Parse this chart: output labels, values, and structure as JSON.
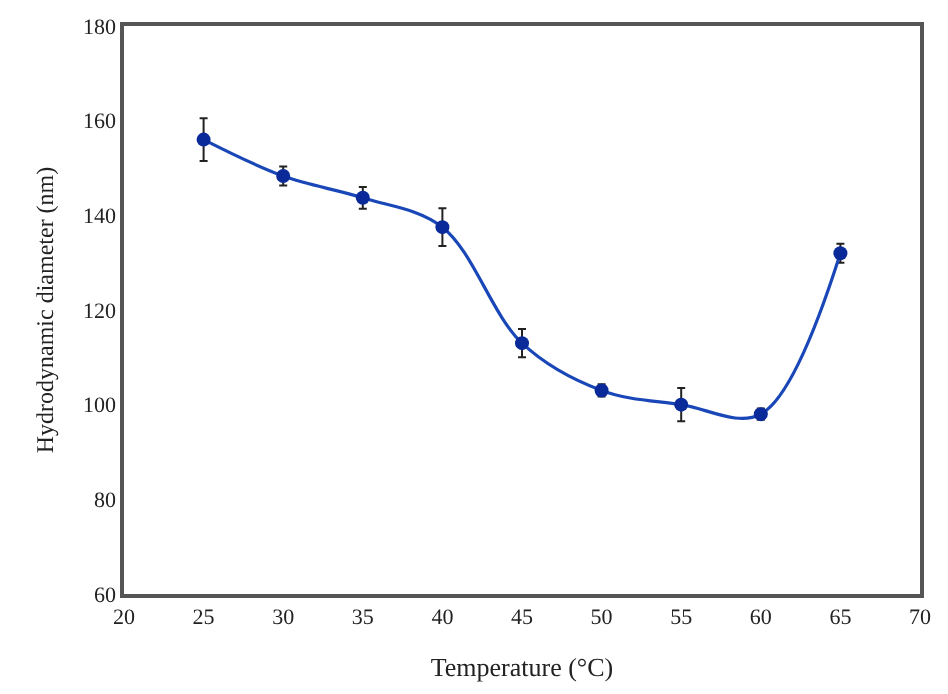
{
  "chart_data": {
    "type": "line",
    "xlabel": "Temperature (°C)",
    "ylabel": "Hydrodynamic diameter (nm)",
    "x": [
      25,
      30,
      35,
      40,
      45,
      50,
      55,
      60,
      65
    ],
    "series": [
      {
        "color": "#1a47b8",
        "values": [
          156,
          148.3,
          143.7,
          137.5,
          113,
          103,
          100,
          98,
          132
        ],
        "errors": [
          4.5,
          2,
          2.3,
          4,
          3,
          1.3,
          3.5,
          1.2,
          2
        ]
      }
    ],
    "xlim": [
      20,
      70
    ],
    "xticks": [
      20,
      25,
      30,
      35,
      40,
      45,
      50,
      55,
      60,
      65,
      70
    ],
    "ylim": [
      60,
      180
    ],
    "yticks": [
      60,
      80,
      100,
      120,
      140,
      160,
      180
    ],
    "marker": "circle",
    "line_style": "solid"
  }
}
